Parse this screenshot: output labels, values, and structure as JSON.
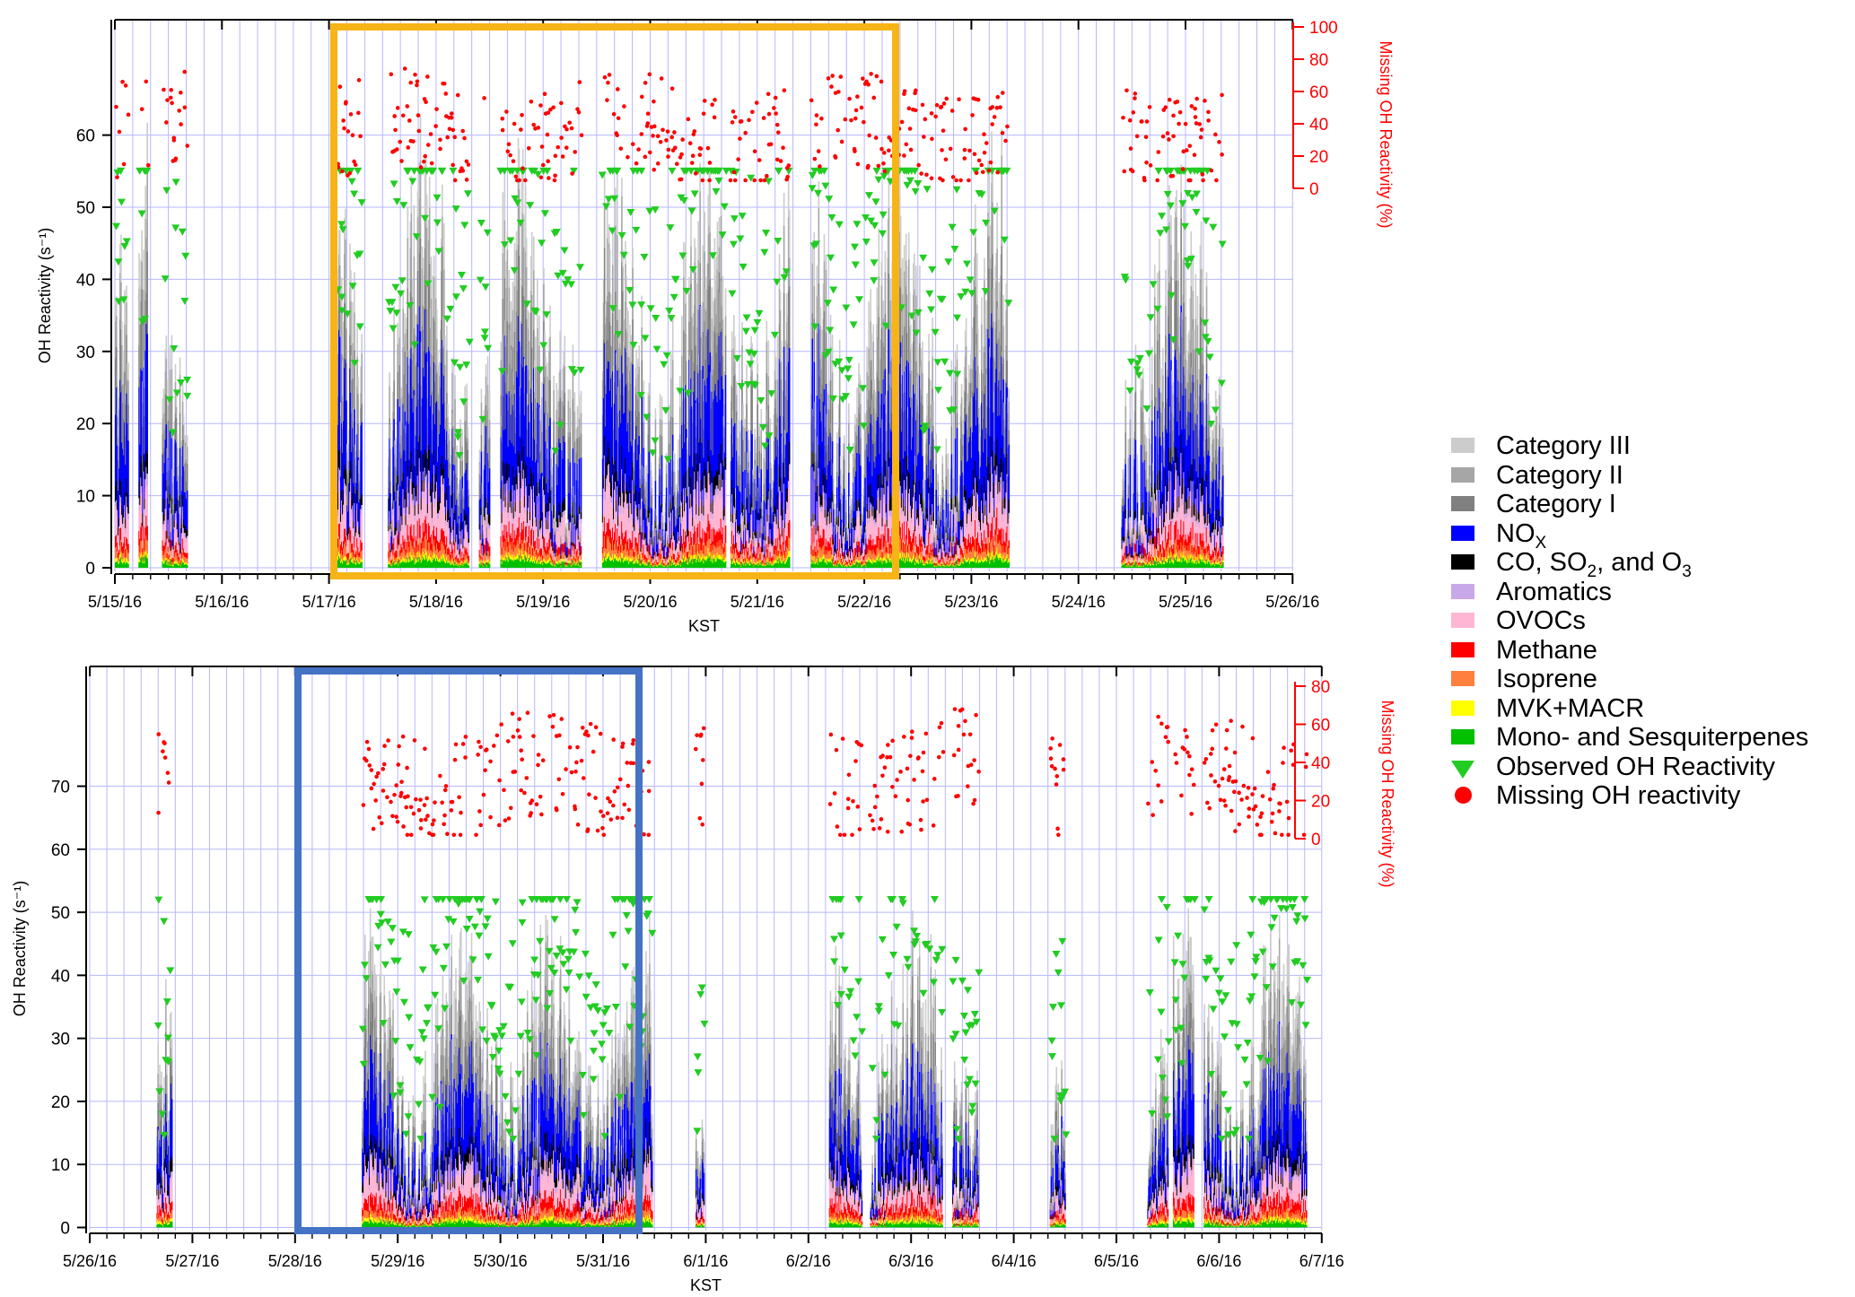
{
  "colors": {
    "grid": "#b7b7ff",
    "axis": "#000000",
    "missing_axis": "#ff0000",
    "highlight_top": "#f7b416",
    "highlight_bottom": "#4472c4"
  },
  "legend": {
    "items": [
      {
        "label": "Category III",
        "color": "#cccccc",
        "shape": "square"
      },
      {
        "label": "Category II",
        "color": "#a6a6a6",
        "shape": "square"
      },
      {
        "label": "Category I",
        "color": "#808080",
        "shape": "square"
      },
      {
        "label": "NO",
        "sub": "X",
        "tail": "",
        "color": "#0000ff",
        "shape": "square"
      },
      {
        "label": "CO, SO",
        "sub": "2",
        "tail": ", and O",
        "sub2": "3",
        "color": "#000000",
        "shape": "square"
      },
      {
        "label": "Aromatics",
        "color": "#c8a8e8",
        "shape": "square"
      },
      {
        "label": "OVOCs",
        "color": "#ffb6d5",
        "shape": "square"
      },
      {
        "label": "Methane",
        "color": "#ff0000",
        "shape": "square"
      },
      {
        "label": "Isoprene",
        "color": "#ff7f3f",
        "shape": "square"
      },
      {
        "label": "MVK+MACR",
        "color": "#ffff00",
        "shape": "square"
      },
      {
        "label": "Mono- and Sesquiterpenes",
        "color": "#00c000",
        "shape": "square"
      },
      {
        "label": "Observed OH Reactivity",
        "color": "#22cc22",
        "shape": "triangle"
      },
      {
        "label": "Missing OH reactivity",
        "color": "#ff0000",
        "shape": "circle"
      }
    ]
  },
  "chart_data": [
    {
      "type": "area",
      "panel": "top",
      "xlabel": "KST",
      "ylabel": "OH Reactivity (s⁻¹)",
      "y2label": "Missing OH Reactivity (%)",
      "xticks": [
        "5/15/16",
        "5/16/16",
        "5/17/16",
        "5/18/16",
        "5/19/16",
        "5/20/16",
        "5/21/16",
        "5/22/16",
        "5/23/16",
        "5/24/16",
        "5/25/16",
        "5/26/16"
      ],
      "yticks": [
        0,
        10,
        20,
        30,
        40,
        50,
        60
      ],
      "y2ticks": [
        0,
        20,
        40,
        60,
        80,
        100
      ],
      "xlim_days": [
        0,
        11
      ],
      "ylim": [
        -0.5,
        76
      ],
      "y2lim": [
        0,
        100
      ],
      "grid": true,
      "highlight_box_days": [
        2.0,
        7.33
      ],
      "segments_days": [
        [
          0.0,
          0.12
        ],
        [
          0.22,
          0.3
        ],
        [
          0.44,
          0.67
        ],
        [
          2.07,
          2.3
        ],
        [
          2.55,
          3.3
        ],
        [
          3.4,
          3.5
        ],
        [
          3.6,
          4.35
        ],
        [
          4.55,
          5.7
        ],
        [
          5.75,
          6.3
        ],
        [
          6.5,
          8.35
        ],
        [
          9.4,
          10.35
        ]
      ],
      "stack_order": [
        "Mono- and Sesquiterpenes",
        "MVK+MACR",
        "Isoprene",
        "Methane",
        "OVOCs",
        "Aromatics",
        "CO, SO2, and O3",
        "NOX",
        "Category I",
        "Category II",
        "Category III"
      ],
      "series_typical_values": {
        "Mono- and Sesquiterpenes": 0.6,
        "MVK+MACR": 0.3,
        "Isoprene": 0.8,
        "Methane": 1.0,
        "OVOCs": 2.5,
        "Aromatics": 0.6,
        "CO, SO2, and O3": 1.2,
        "NOX": 6.0,
        "Category I": 3.0,
        "Category II": 2.5,
        "Category III": 2.0
      },
      "observed_oh_reactivity_range": [
        15,
        55
      ],
      "missing_oh_reactivity_range_percent": [
        5,
        85
      ]
    },
    {
      "type": "area",
      "panel": "bottom",
      "xlabel": "KST",
      "ylabel": "OH Reactivity (s⁻¹)",
      "y2label": "Missing OH Reactivity (%)",
      "xticks": [
        "5/26/16",
        "5/27/16",
        "5/28/16",
        "5/29/16",
        "5/30/16",
        "5/31/16",
        "6/1/16",
        "6/2/16",
        "6/3/16",
        "6/4/16",
        "6/5/16",
        "6/6/16",
        "6/7/16"
      ],
      "yticks": [
        0,
        10,
        20,
        30,
        40,
        50,
        60,
        70
      ],
      "y2ticks": [
        0,
        20,
        40,
        60,
        80
      ],
      "xlim_days": [
        0,
        12
      ],
      "ylim": [
        -0.5,
        89
      ],
      "y2lim": [
        0,
        80
      ],
      "grid": true,
      "highlight_box_days": [
        2.0,
        5.5
      ],
      "segments_days": [
        [
          0.65,
          0.8
        ],
        [
          2.65,
          5.48
        ],
        [
          5.9,
          5.98
        ],
        [
          7.2,
          7.52
        ],
        [
          7.6,
          8.3
        ],
        [
          8.4,
          8.65
        ],
        [
          9.35,
          9.5
        ],
        [
          10.3,
          10.5
        ],
        [
          10.55,
          10.75
        ],
        [
          10.85,
          11.85
        ]
      ],
      "stack_order": [
        "Mono- and Sesquiterpenes",
        "MVK+MACR",
        "Isoprene",
        "Methane",
        "OVOCs",
        "Aromatics",
        "CO, SO2, and O3",
        "NOX",
        "Category I",
        "Category II",
        "Category III"
      ],
      "series_typical_values": {
        "Mono- and Sesquiterpenes": 0.5,
        "MVK+MACR": 0.3,
        "Isoprene": 0.6,
        "Methane": 1.0,
        "OVOCs": 2.2,
        "Aromatics": 0.5,
        "CO, SO2, and O3": 1.2,
        "NOX": 5.0,
        "Category I": 2.5,
        "Category II": 2.0,
        "Category III": 1.8
      },
      "observed_oh_reactivity_range": [
        14,
        52
      ],
      "missing_oh_reactivity_range_percent": [
        2,
        80
      ]
    }
  ]
}
